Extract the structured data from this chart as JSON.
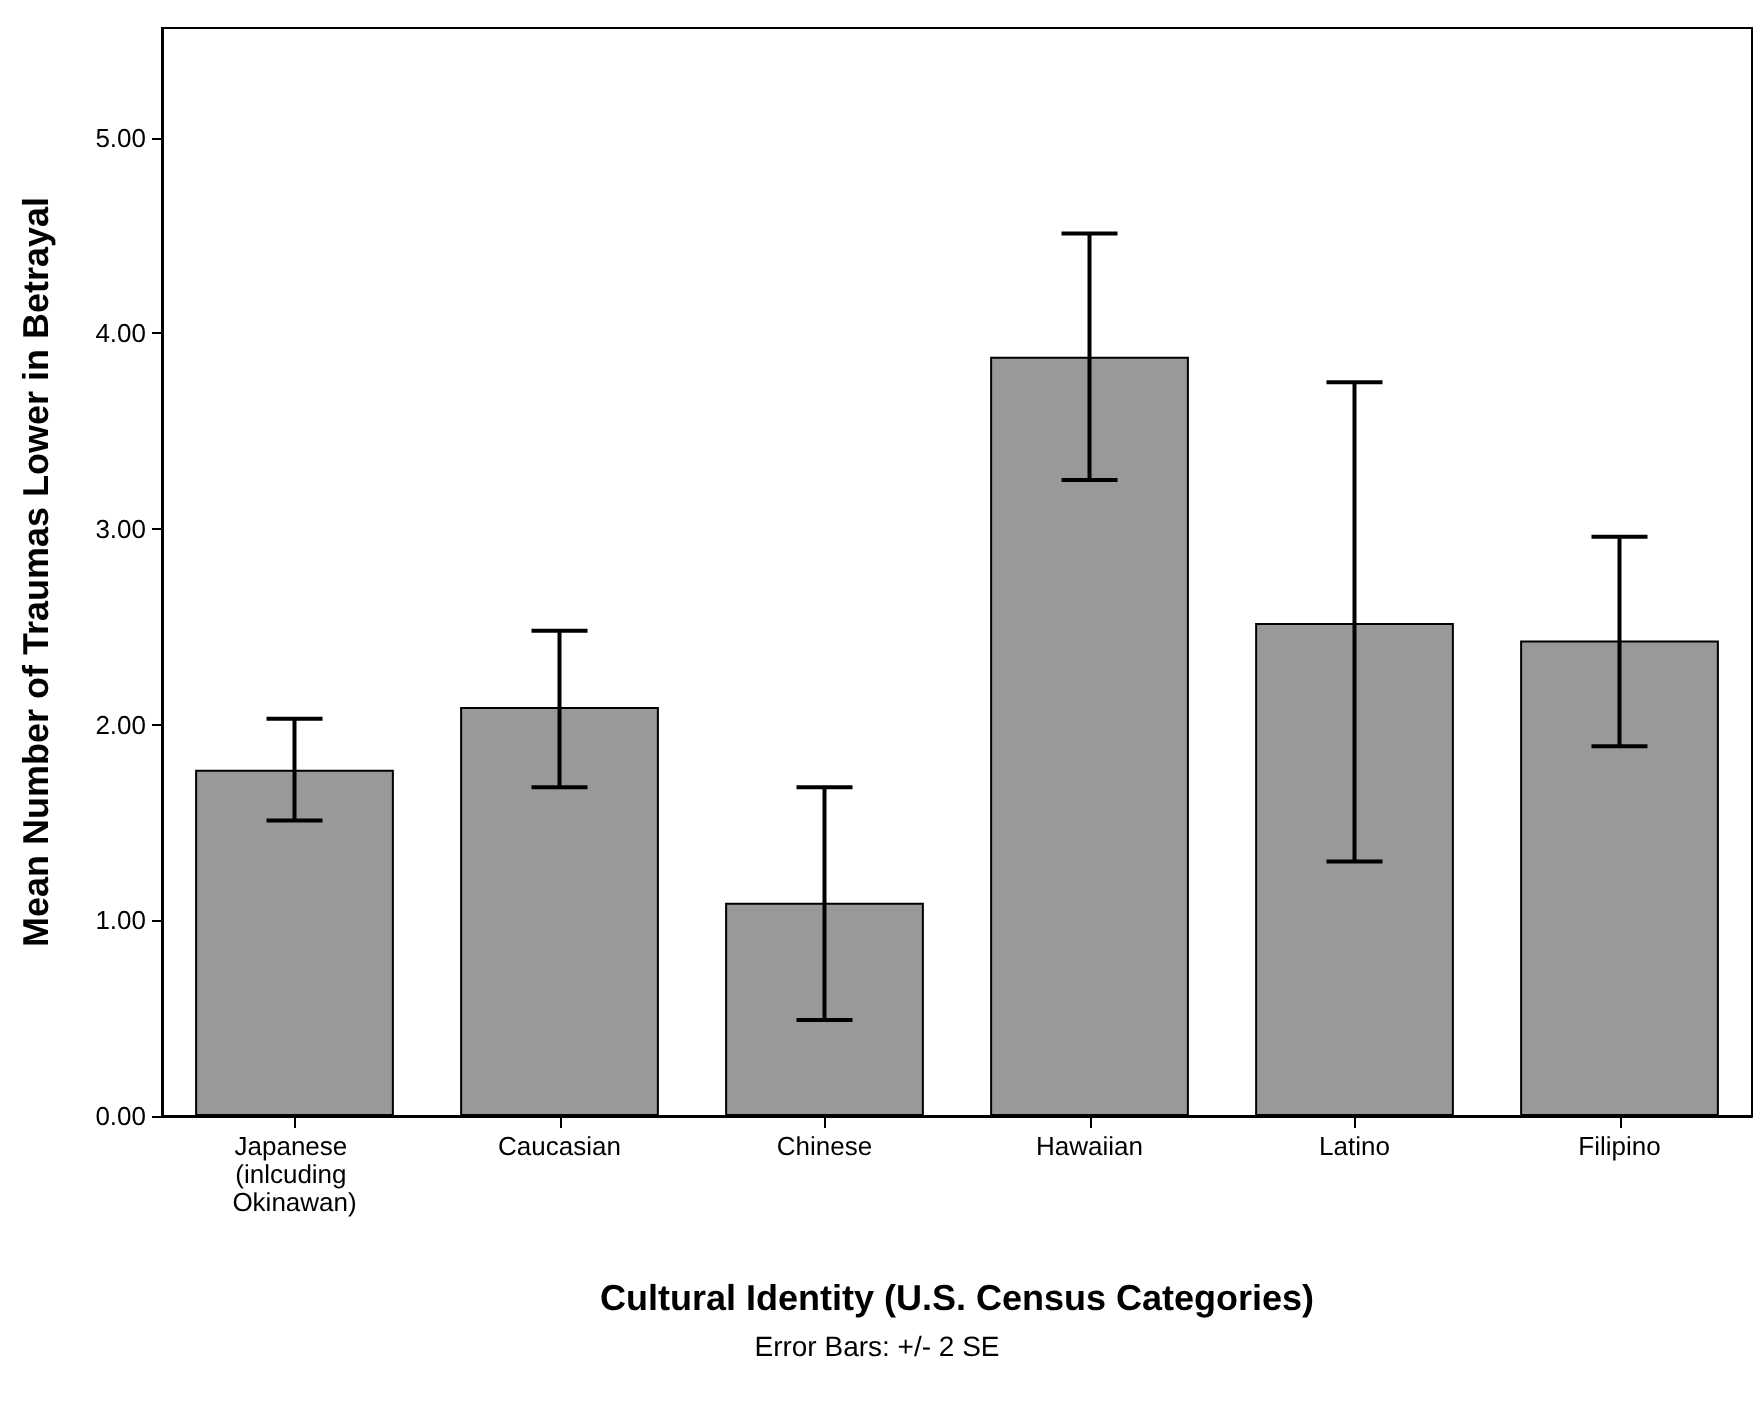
{
  "chart_data": {
    "type": "bar",
    "xlabel": "Cultural Identity (U.S. Census Categories)",
    "ylabel": "Mean Number of Traumas Lower in Betrayal",
    "categories": [
      "Japanese (inlcuding Okinawan)",
      "Caucasian",
      "Chinese",
      "Hawaiian",
      "Latino",
      "Filipino"
    ],
    "values": [
      1.77,
      2.09,
      1.09,
      3.88,
      2.52,
      2.43
    ],
    "errors": [
      [
        1.51,
        2.03
      ],
      [
        1.68,
        2.48
      ],
      [
        0.49,
        1.68
      ],
      [
        3.25,
        4.51
      ],
      [
        1.3,
        3.75
      ],
      [
        1.89,
        2.96
      ]
    ],
    "color": "#999999",
    "ylim": [
      0,
      5.56
    ],
    "yticks": [
      {
        "value": 0,
        "label": "0.00"
      },
      {
        "value": 1,
        "label": "1.00"
      },
      {
        "value": 2,
        "label": "2.00"
      },
      {
        "value": 3,
        "label": "3.00"
      },
      {
        "value": 4,
        "label": "4.00"
      },
      {
        "value": 5,
        "label": "5.00"
      }
    ],
    "annotations": [
      "Error Bars: +/- 2 SE"
    ],
    "grid": false
  }
}
